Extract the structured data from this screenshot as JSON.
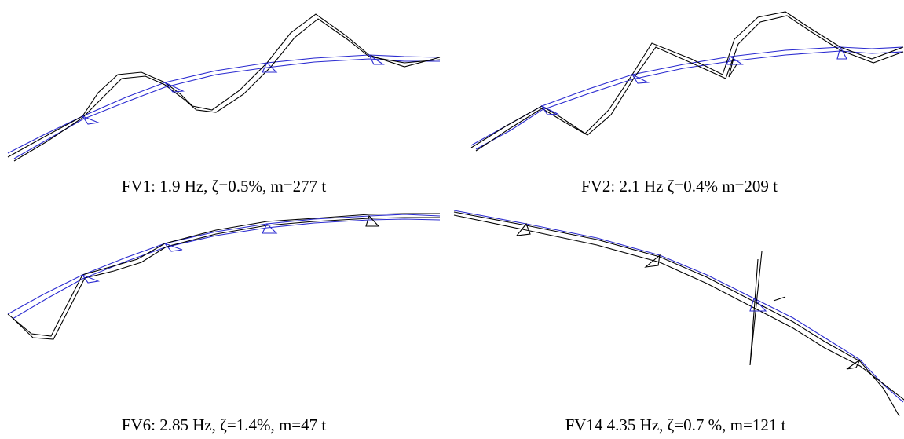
{
  "panels": [
    {
      "caption": "FV1: 1.9 Hz, ζ=0.5%, m=277 t"
    },
    {
      "caption": "FV2: 2.1 Hz ζ=0.4% m=209 t"
    },
    {
      "caption": "FV6: 2.85 Hz, ζ=1.4%, m=47 t"
    },
    {
      "caption": "FV14 4.35 Hz, ζ=0.7 %, m=121 t"
    }
  ]
}
